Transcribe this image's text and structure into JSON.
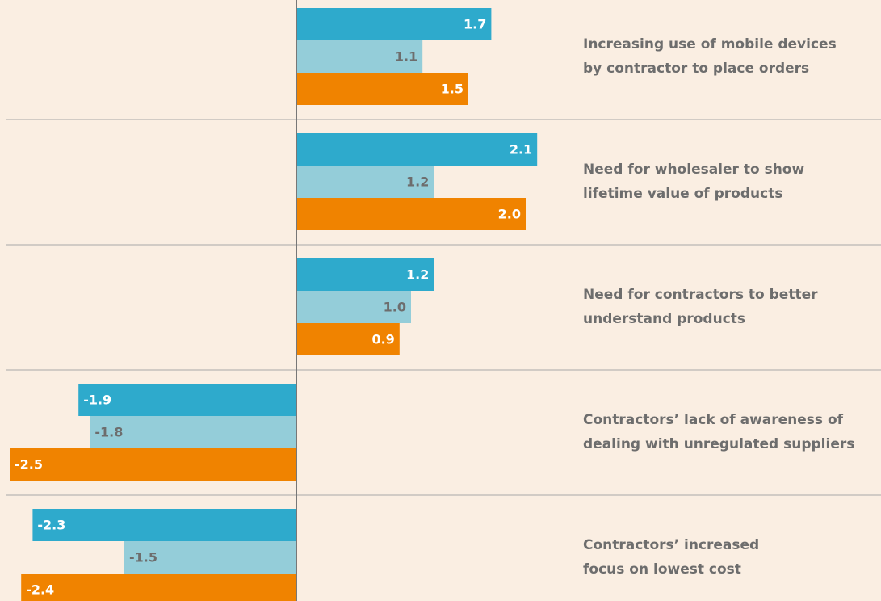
{
  "chart_data": {
    "type": "hbar",
    "categories": [
      [
        "Increasing use of mobile devices",
        "by contractor to place orders"
      ],
      [
        "Need for wholesaler to show",
        "lifetime value of products"
      ],
      [
        "Need for contractors to better",
        "understand products"
      ],
      [
        "Contractors’ lack of awareness of",
        "dealing with unregulated suppliers"
      ],
      [
        "Contractors’ increased",
        "focus on lowest cost"
      ]
    ],
    "series": [
      {
        "color": "#2eaacc",
        "values": [
          1.7,
          2.1,
          1.2,
          -1.9,
          -2.3
        ],
        "value_labels": [
          "1.7",
          "2.1",
          "1.2",
          "-1.9",
          "-2.3"
        ]
      },
      {
        "color": "#94cdd9",
        "values": [
          1.1,
          1.2,
          1.0,
          -1.8,
          -1.5
        ],
        "value_labels": [
          "1.1",
          "1.2",
          "1.0",
          "-1.8",
          "-1.5"
        ]
      },
      {
        "color": "#f08300",
        "values": [
          1.5,
          2.0,
          0.9,
          -2.5,
          -2.4
        ],
        "value_labels": [
          "1.5",
          "2.0",
          "0.9",
          "-2.5",
          "-2.4"
        ]
      }
    ]
  }
}
